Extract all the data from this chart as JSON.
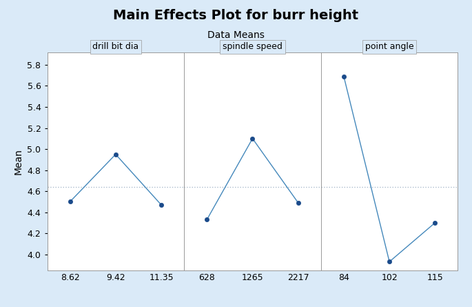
{
  "title": "Main Effects Plot for burr height",
  "subtitle": "Data Means",
  "ylabel": "Mean",
  "fig_bg_color": "#daeaf8",
  "plot_bg_color": "#ffffff",
  "line_color": "#4488bb",
  "marker_color": "#1a4a8a",
  "mean_line_color": "#aabbcc",
  "panels": [
    {
      "label": "drill bit dia",
      "x_labels": [
        "8.62",
        "9.42",
        "11.35"
      ],
      "y_values": [
        4.5,
        4.95,
        4.47
      ]
    },
    {
      "label": "spindle speed",
      "x_labels": [
        "628",
        "1265",
        "2217"
      ],
      "y_values": [
        4.33,
        5.1,
        4.49
      ]
    },
    {
      "label": "point angle",
      "x_labels": [
        "84",
        "102",
        "115"
      ],
      "y_values": [
        5.69,
        3.93,
        4.3
      ]
    }
  ],
  "ylim": [
    3.85,
    5.92
  ],
  "yticks": [
    4.0,
    4.2,
    4.4,
    4.6,
    4.8,
    5.0,
    5.2,
    5.4,
    5.6,
    5.8
  ],
  "grand_mean": 4.643,
  "title_fontsize": 14,
  "subtitle_fontsize": 10,
  "panel_label_fontsize": 9,
  "axis_label_fontsize": 10,
  "tick_fontsize": 9
}
